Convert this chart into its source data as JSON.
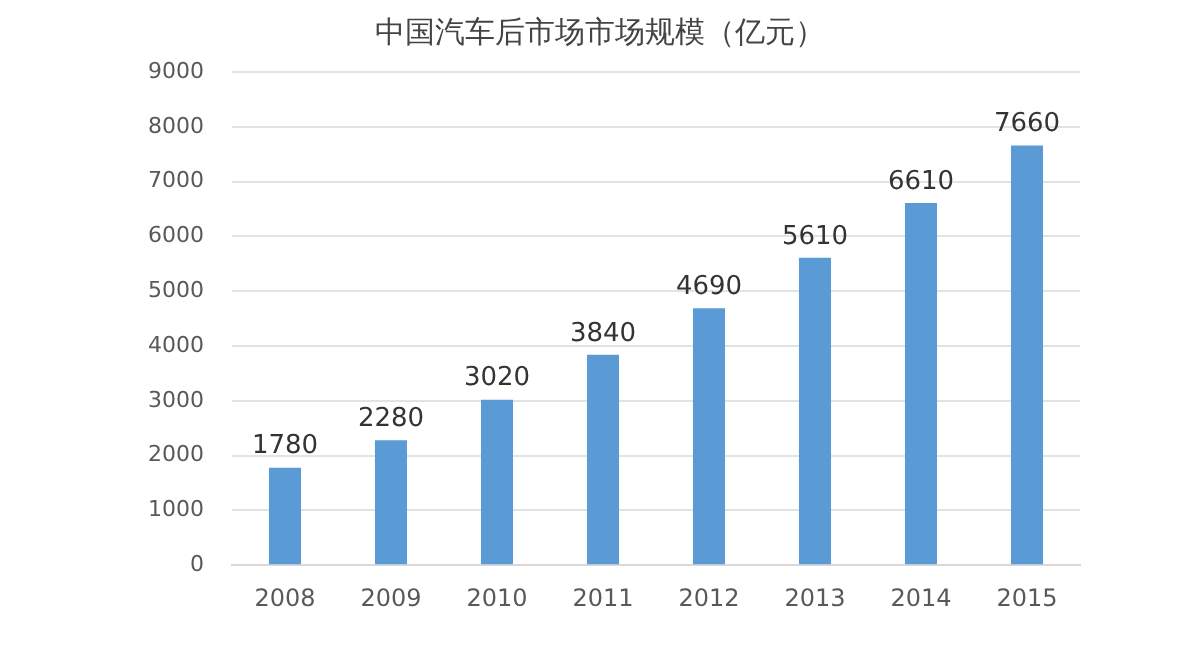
{
  "chart_data": {
    "type": "bar",
    "title": "中国汽车后市场市场规模（亿元）",
    "categories": [
      "2008",
      "2009",
      "2010",
      "2011",
      "2012",
      "2013",
      "2014",
      "2015"
    ],
    "values": [
      1780,
      2280,
      3020,
      3840,
      4690,
      5610,
      6610,
      7660
    ],
    "color": "#5b9bd5",
    "ylim": [
      0,
      9000
    ],
    "yticks": [
      0,
      1000,
      2000,
      3000,
      4000,
      5000,
      6000,
      7000,
      8000,
      9000
    ],
    "grid": "y",
    "data_labels": true,
    "legend": false
  }
}
